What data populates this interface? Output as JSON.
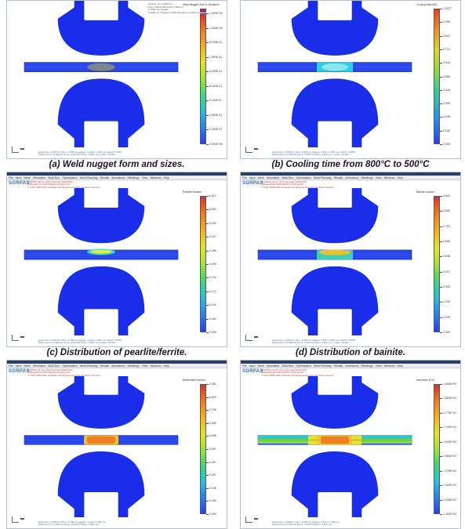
{
  "common": {
    "brand": "SORPAS",
    "menu": [
      "File",
      "Input",
      "Mesh",
      "Simulation",
      "Multi-Run",
      "Optimization",
      "Weld-Planning",
      "Results",
      "Animations",
      "Weldlingo",
      "View",
      "Windows",
      "Help"
    ],
    "colors": {
      "steel_blue": "#1a2eea",
      "sheet_blue": "#2a48e8",
      "outline": "#1733b8"
    }
  },
  "panels": [
    {
      "id": "a",
      "caption": "(a) Weld nugget form and sizes.",
      "has_menubar": false,
      "header_lines": [],
      "legend": {
        "title": "Weld Nugget Size & Structure",
        "gradient": "linear-gradient(to bottom, #d8332a 0%, #ea7a23 12%, #f0b21e 25%, #e4e22c 38%, #9ee436 50%, #43d674 62%, #2bc0d8 75%, #2c7ee6 88%, #2840e8 100%)",
        "top_swatch": "#9a2d86",
        "ticks": [
          "1.000E+00",
          "1.000E+00",
          "8.750E-01",
          "7.500E-01",
          "6.250E-01",
          "5.000E-01",
          "3.750E-01",
          "2.500E-01",
          "1.250E-01",
          "0.000E+00"
        ]
      },
      "info_lines": [
        "All Nug. Cir. 4.0000 mm",
        "Nug. 1.000 0.000 0.000 1.000 mm",
        "1 1000 mm nuggets",
        "0.1000 mm Nuggets 1.000 Detections 0.1000 mm"
      ],
      "nugget": {
        "type": "grey",
        "color": "#7d8590"
      },
      "footer": [
        "Heat Input: 1.0000 kJ   Time: 3.300 ms   Nugget: 4.200 x 1.200 mm   Indent: 0.0000",
        "Weld Current: 8.000 kA   Force: 3.000 kN   Sheet: 1.500 mm   Cycles: 10.000"
      ]
    },
    {
      "id": "b",
      "caption": "(b) Cooling time from 800°C to 500°C",
      "has_menubar": false,
      "header_lines": [],
      "legend": {
        "title": "Cooling time t8/5",
        "gradient": "linear-gradient(to bottom, #e0402d 0%, #e98c24 14%, #ddd52c 30%, #8ed941 46%, #37c7a5 62%, #2c92e4 80%, #2843e8 100%)",
        "top_swatch": "",
        "ticks": [
          "1.0277",
          "0.935",
          "0.842",
          "0.719",
          "0.618",
          "0.555",
          "0.416",
          "0.308",
          "0.208",
          "0.105",
          "0.000"
        ]
      },
      "info_lines": [],
      "nugget": {
        "type": "cooling",
        "color": "#2fd0e4"
      },
      "footer": [
        "Heat Input: 1.0000 kJ   Time: 3.300 ms   Nugget: 4.200 x 1.200 mm   Indent: 0.0000",
        "Weld Current: 8.000 kA   Force: 3.000 kN   Sheet: 1.500 mm   Cycles: 10.000"
      ]
    },
    {
      "id": "c",
      "caption": "(c) Distribution of pearlite/ferrite.",
      "has_menubar": true,
      "header_lines": [
        "SORPAS 2D  Ver 10.0  Copyright SWANTEC",
        "Stiftsgade  DK-2400  Welding  Settings DK",
        "© 2014 SWANTEC Software and Engineering ApS. All rights reserved"
      ],
      "legend": {
        "title": "Pearlite fraction",
        "gradient": "linear-gradient(to bottom, #d8332a 0%, #ea7a23 12%, #f0b21e 25%, #e4e22c 38%, #9ee436 50%, #43d674 62%, #2bc0d8 75%, #2c7ee6 88%, #2840e8 100%)",
        "top_swatch": "",
        "ticks": [
          "0.617",
          "0.563",
          "0.490",
          "0.427",
          "0.365",
          "0.298",
          "0.234",
          "0.172",
          "0.101",
          "0.064",
          "0.000"
        ]
      },
      "info_lines": [],
      "nugget": {
        "type": "pearlite",
        "color": "#f0e83a"
      },
      "footer": [
        "Heat Input: 1.0000 kJ   Time: 3.300 ms   Nugget: 4.200 x 1.200 mm   Indent: 0.0000",
        "Weld Current: 8.000 kA   Force: 3.000 kN   Sheet: 1.500 mm   Cycles: 10.000"
      ]
    },
    {
      "id": "d",
      "caption": "(d) Distribution of bainite.",
      "has_menubar": true,
      "header_lines": [
        "SORPAS 2D  Ver 10.0  Copyright SWANTEC",
        "Stiftsgade  DK-2400  Welding  Settings DK",
        "© 2014 SWANTEC Software and Engineering ApS. All rights reserved"
      ],
      "legend": {
        "title": "Bainite fraction",
        "gradient": "linear-gradient(to bottom, #d8332a 0%, #ea7a23 12%, #f0b21e 25%, #e4e22c 38%, #9ee436 50%, #43d674 62%, #2bc0d8 75%, #2c7ee6 88%, #2840e8 100%)",
        "top_swatch": "",
        "ticks": [
          "0.600",
          "0.840",
          "0.750",
          "0.655",
          "0.548",
          "0.437",
          "0.326",
          "0.218",
          "0.109",
          "0.000"
        ]
      },
      "info_lines": [],
      "nugget": {
        "type": "bainite",
        "color": "#e9c22f"
      },
      "footer": [
        "Heat Input: 1.0000 kJ   Time: 3.300 ms   Nugget: 4.200 x 1.200 mm   Indent: 0.0000",
        "Weld Current: 8.000 kA   Force: 3.000 kN   Sheet: 1.500 mm   Cycles: 10.000"
      ]
    },
    {
      "id": "e",
      "caption": "",
      "has_menubar": true,
      "header_lines": [
        "SORPAS 2D  Ver 10.0  Copyright SWANTEC",
        "Stiftsgade  DK-2400  Welding  Settings DK",
        "© 2014 SWANTEC Software and Engineering ApS. All rights reserved"
      ],
      "legend": {
        "title": "Martensite fraction",
        "gradient": "linear-gradient(to bottom, #d8332a 0%, #ea7a23 12%, #f0b21e 25%, #e4e22c 38%, #9ee436 50%, #43d674 62%, #2bc0d8 75%, #2c7ee6 88%, #2840e8 100%)",
        "top_swatch": "",
        "ticks": [
          "0.982",
          "0.893",
          "0.795",
          "0.696",
          "0.596",
          "0.497",
          "0.397",
          "0.297",
          "0.198",
          "0.099",
          "0.000"
        ]
      },
      "info_lines": [],
      "nugget": {
        "type": "martensite",
        "color": "#ef7e27"
      },
      "footer": [
        "Heat Input: 1.0000 kJ   Time: 3.300 ms   Nugget: 4.200 x 1.200 mm",
        "Weld Current: 8.000 kA   Force: 3.000 kN   Sheet: 1.500 mm"
      ]
    },
    {
      "id": "f",
      "caption": "",
      "has_menubar": true,
      "header_lines": [
        "SORPAS 2D  Ver 10.0  Copyright SWANTEC",
        "Stiftsgade  DK-2400  Welding  Settings DK",
        "© 2014 SWANTEC Software and Engineering ApS. All rights reserved"
      ],
      "legend": {
        "title": "Hardness (HV)",
        "gradient": "linear-gradient(to bottom, #d8332a 0%, #ea7a23 12%, #f0b21e 25%, #e4e22c 38%, #9ee436 50%, #43d674 62%, #2bc0d8 75%, #2c7ee6 88%, #2840e8 100%)",
        "top_swatch": "",
        "ticks": [
          "1.950E+02",
          "1.850E+02",
          "1.775E+02",
          "1.700E+02",
          "1.625E+02",
          "1.550E+02",
          "1.475E+02",
          "1.400E+02",
          "1.325E+02",
          "1.250E+02"
        ]
      },
      "info_lines": [],
      "nugget": {
        "type": "hardness",
        "color": "#ef7e27"
      },
      "footer": [
        "Heat Input: 1.0000 kJ   Time: 3.300 ms   Nugget: 4.200 x 1.200 mm",
        "Weld Current: 8.000 kA   Force: 3.000 kN   Sheet: 1.500 mm"
      ]
    }
  ]
}
